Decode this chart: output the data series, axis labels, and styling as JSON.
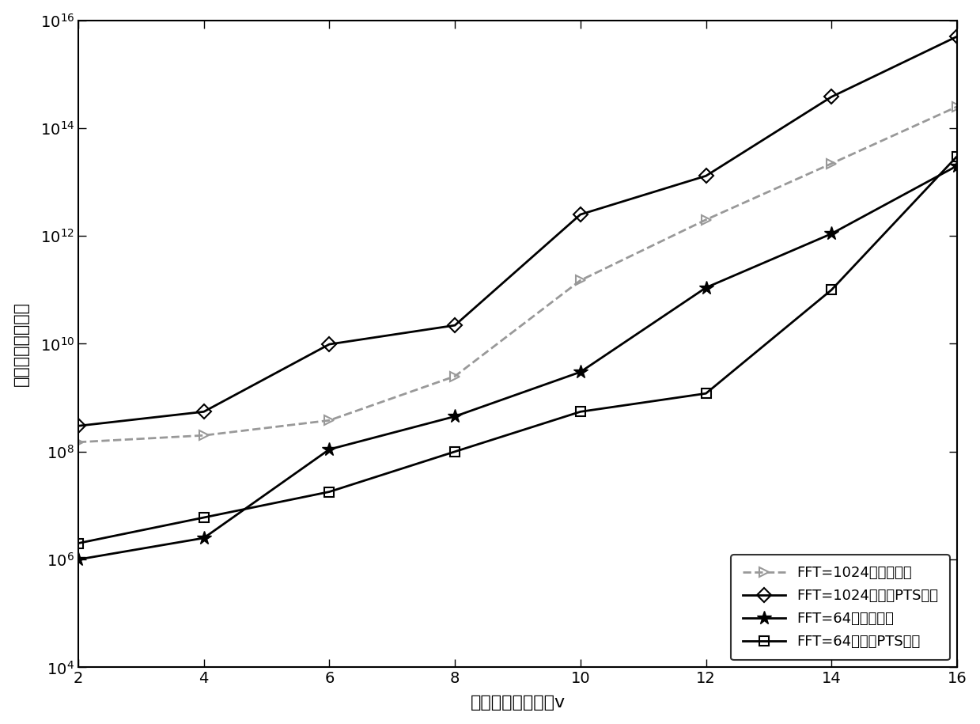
{
  "x": [
    2,
    4,
    6,
    8,
    10,
    12,
    14,
    16
  ],
  "xlabel": "分隔的子序列列数v",
  "ylabel": "实数计算乘法次数",
  "legend": [
    "FFT=1024，联合算法",
    "FFT=1024，传统PTS算法",
    "FFT=64，联合算法",
    "FFT=64，传统PTS算法"
  ],
  "fft1024_trad": [
    300000000.0,
    550000000.0,
    9800000000.0,
    22000000000.0,
    2500000000000.0,
    13000000000000.0,
    380000000000000.0,
    5000000000000000.0
  ],
  "fft1024_joint": [
    150000000.0,
    200000000.0,
    380000000.0,
    2500000000.0,
    150000000000.0,
    2000000000000.0,
    22000000000000.0,
    250000000000000.0
  ],
  "fft64_trad": [
    2000000.0,
    6000000.0,
    18000000.0,
    100000000.0,
    550000000.0,
    1200000000.0,
    100000000000.0,
    30000000000000.0
  ],
  "fft64_joint": [
    1000000.0,
    2500000.0,
    110000000.0,
    450000000.0,
    3000000000.0,
    110000000000.0,
    1100000000000.0,
    20000000000000.0
  ],
  "ylim_bottom": 10000.0,
  "ylim_top": 1e+16,
  "xlim_left": 2,
  "xlim_right": 16,
  "color_joint1024": "#999999",
  "color_trad1024": "#000000",
  "color_joint64": "#000000",
  "color_trad64": "#000000"
}
